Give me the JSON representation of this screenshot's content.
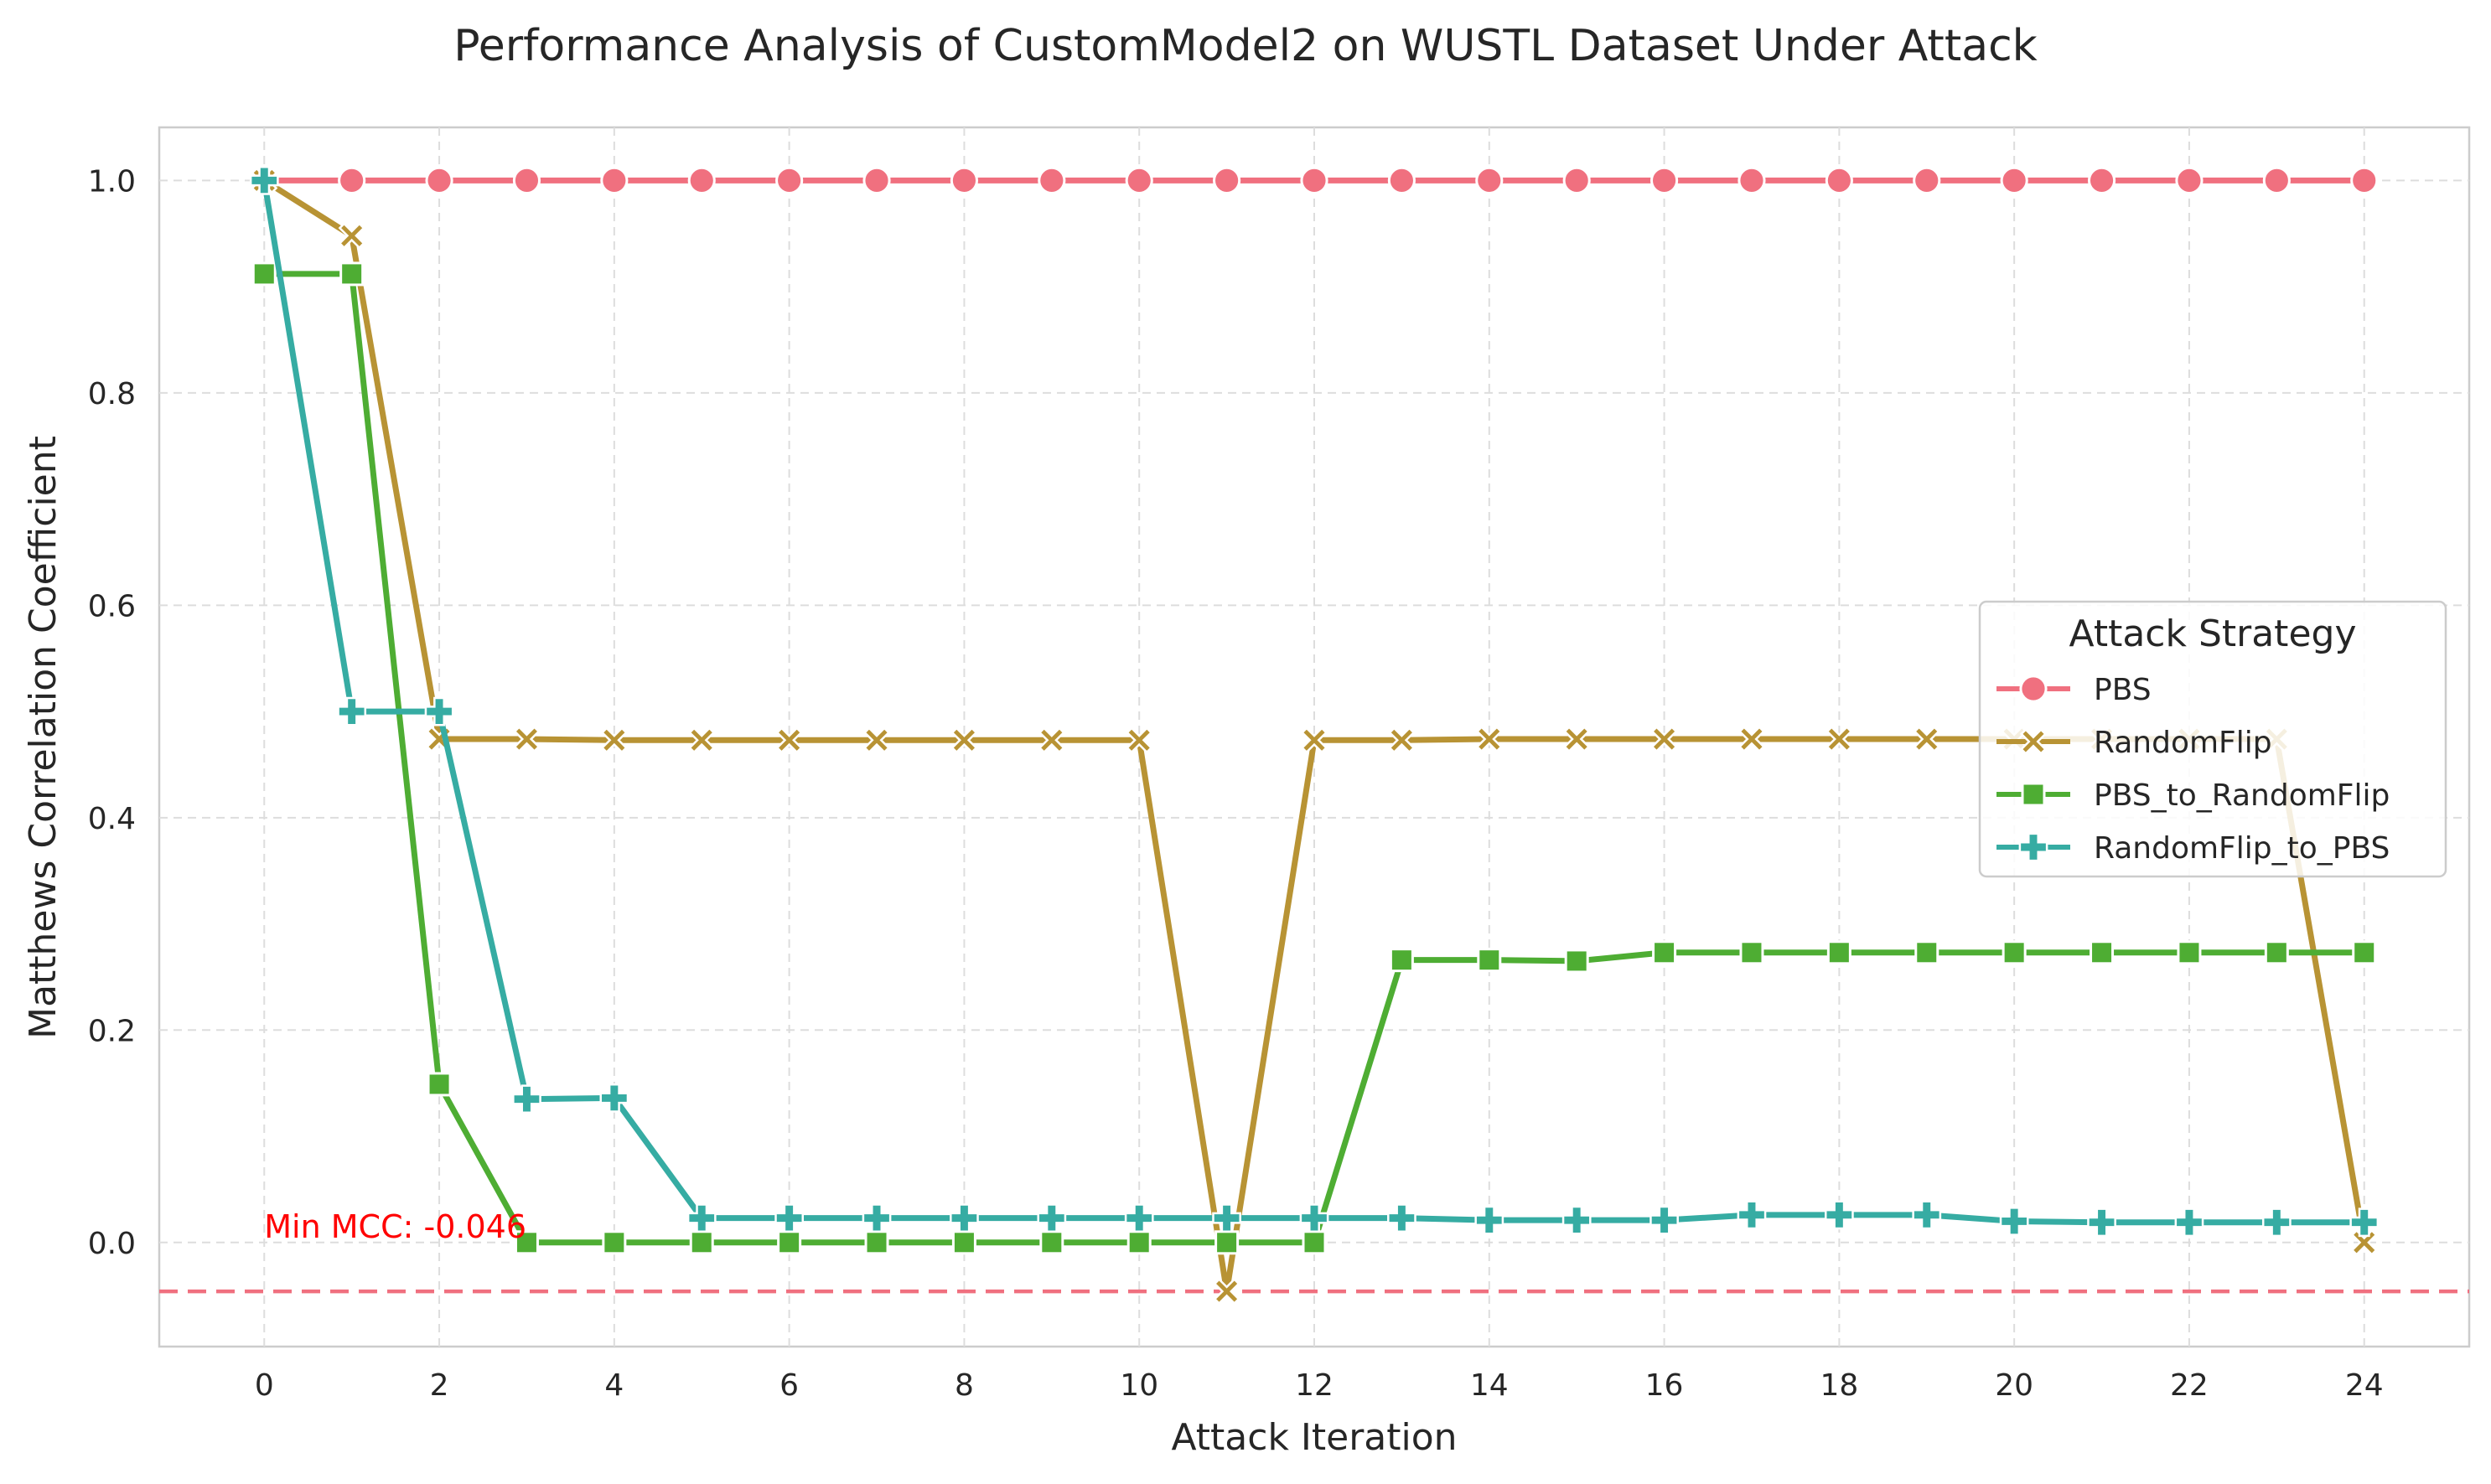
{
  "chart_data": {
    "type": "line",
    "title": "Performance Analysis of CustomModel2 on WUSTL Dataset Under Attack",
    "xlabel": "Attack Iteration",
    "ylabel": "Matthews Correlation Coefficient",
    "xlim": [
      -1.2,
      25.2
    ],
    "ylim": [
      -0.098,
      1.05
    ],
    "xticks": [
      0,
      2,
      4,
      6,
      8,
      10,
      12,
      14,
      16,
      18,
      20,
      22,
      24
    ],
    "yticks": [
      0.0,
      0.2,
      0.4,
      0.6,
      0.8,
      1.0
    ],
    "ytick_labels": [
      "0.0",
      "0.2",
      "0.4",
      "0.6",
      "0.8",
      "1.0"
    ],
    "grid": true,
    "legend": {
      "title": "Attack Strategy",
      "placement": "center-right"
    },
    "x": [
      0,
      1,
      2,
      3,
      4,
      5,
      6,
      7,
      8,
      9,
      10,
      11,
      12,
      13,
      14,
      15,
      16,
      17,
      18,
      19,
      20,
      21,
      22,
      23,
      24
    ],
    "series": [
      {
        "name": "PBS",
        "color": "#f0707f",
        "marker": "circle",
        "values": [
          1.0,
          1.0,
          1.0,
          1.0,
          1.0,
          1.0,
          1.0,
          1.0,
          1.0,
          1.0,
          1.0,
          1.0,
          1.0,
          1.0,
          1.0,
          1.0,
          1.0,
          1.0,
          1.0,
          1.0,
          1.0,
          1.0,
          1.0,
          1.0,
          1.0
        ]
      },
      {
        "name": "RandomFlip",
        "color": "#b89334",
        "marker": "x",
        "values": [
          1.0,
          0.948,
          0.474,
          0.474,
          0.473,
          0.473,
          0.473,
          0.473,
          0.473,
          0.473,
          0.473,
          -0.046,
          0.473,
          0.473,
          0.474,
          0.474,
          0.474,
          0.474,
          0.474,
          0.474,
          0.474,
          0.474,
          0.474,
          0.474,
          0.0
        ]
      },
      {
        "name": "PBS_to_RandomFlip",
        "color": "#4ead33",
        "marker": "square",
        "values": [
          0.912,
          0.912,
          0.149,
          0.0,
          0.0,
          0.0,
          0.0,
          0.0,
          0.0,
          0.0,
          0.0,
          0.0,
          0.0,
          0.266,
          0.266,
          0.265,
          0.273,
          0.273,
          0.273,
          0.273,
          0.273,
          0.273,
          0.273,
          0.273,
          0.273
        ]
      },
      {
        "name": "RandomFlip_to_PBS",
        "color": "#36aca3",
        "marker": "plus",
        "values": [
          1.0,
          0.5,
          0.5,
          0.135,
          0.136,
          0.023,
          0.023,
          0.023,
          0.023,
          0.023,
          0.023,
          0.023,
          0.023,
          0.023,
          0.021,
          0.021,
          0.021,
          0.026,
          0.026,
          0.026,
          0.02,
          0.019,
          0.019,
          0.019,
          0.019
        ]
      }
    ],
    "reference_line": {
      "y": -0.046,
      "color": "#f0707f",
      "style": "dashed"
    },
    "annotation": {
      "text": "Min MCC: -0.046",
      "x": 0,
      "y": 0.0,
      "color": "#ff0000"
    }
  }
}
